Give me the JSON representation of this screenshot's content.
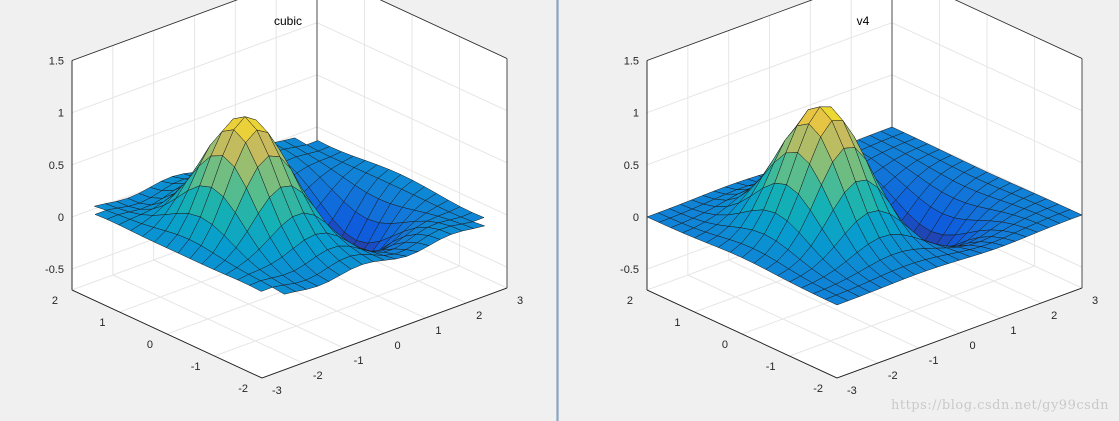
{
  "chart_data": [
    {
      "type": "surface",
      "title": "cubic",
      "xlabel": "",
      "ylabel": "",
      "zlabel": "",
      "xlim": [
        -3,
        3
      ],
      "ylim": [
        -2,
        2
      ],
      "zlim": [
        -0.7,
        1.5
      ],
      "x_ticks": [
        "-3",
        "-2",
        "-1",
        "0",
        "1",
        "2",
        "3"
      ],
      "y_ticks": [
        "-2",
        "-1",
        "0",
        "1",
        "2"
      ],
      "z_ticks": [
        "-0.5",
        "0",
        "0.5",
        "1",
        "1.5"
      ],
      "grid": true,
      "colormap": "parula",
      "method": "cubic",
      "peak": 1.12,
      "trough": -0.65
    },
    {
      "type": "surface",
      "title": "v4",
      "xlabel": "",
      "ylabel": "",
      "zlabel": "",
      "xlim": [
        -3,
        3
      ],
      "ylim": [
        -2,
        2
      ],
      "zlim": [
        -0.7,
        1.5
      ],
      "x_ticks": [
        "-3",
        "-2",
        "-1",
        "0",
        "1",
        "2",
        "3"
      ],
      "y_ticks": [
        "-2",
        "-1",
        "0",
        "1",
        "2"
      ],
      "z_ticks": [
        "-0.5",
        "0",
        "0.5",
        "1",
        "1.5"
      ],
      "grid": true,
      "colormap": "parula",
      "method": "v4",
      "peak": 1.22,
      "trough": -0.58
    }
  ],
  "watermark": "https://blog.csdn.net/gy99csdn"
}
